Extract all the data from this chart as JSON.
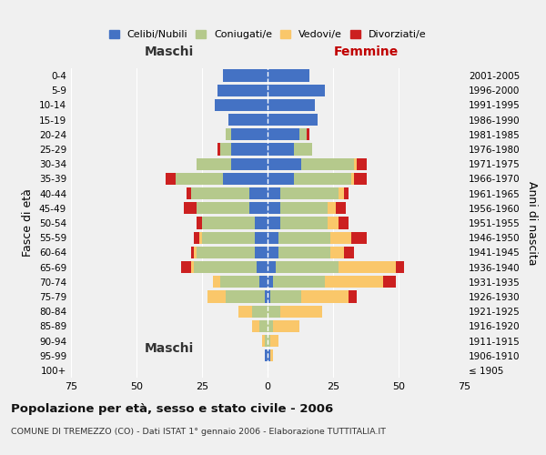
{
  "age_groups": [
    "100+",
    "95-99",
    "90-94",
    "85-89",
    "80-84",
    "75-79",
    "70-74",
    "65-69",
    "60-64",
    "55-59",
    "50-54",
    "45-49",
    "40-44",
    "35-39",
    "30-34",
    "25-29",
    "20-24",
    "15-19",
    "10-14",
    "5-9",
    "0-4"
  ],
  "birth_years": [
    "≤ 1905",
    "1906-1910",
    "1911-1915",
    "1916-1920",
    "1921-1925",
    "1926-1930",
    "1931-1935",
    "1936-1940",
    "1941-1945",
    "1946-1950",
    "1951-1955",
    "1956-1960",
    "1961-1965",
    "1966-1970",
    "1971-1975",
    "1976-1980",
    "1981-1985",
    "1986-1990",
    "1991-1995",
    "1996-2000",
    "2001-2005"
  ],
  "male": {
    "celibe": [
      0,
      1,
      0,
      0,
      0,
      1,
      3,
      4,
      5,
      5,
      5,
      7,
      7,
      17,
      14,
      14,
      14,
      15,
      20,
      19,
      17
    ],
    "coniugato": [
      0,
      0,
      1,
      3,
      6,
      15,
      15,
      24,
      22,
      20,
      20,
      20,
      22,
      18,
      13,
      4,
      2,
      0,
      0,
      0,
      0
    ],
    "vedovo": [
      0,
      0,
      1,
      3,
      5,
      7,
      3,
      1,
      1,
      1,
      0,
      0,
      0,
      0,
      0,
      0,
      0,
      0,
      0,
      0,
      0
    ],
    "divorziato": [
      0,
      0,
      0,
      0,
      0,
      0,
      0,
      4,
      1,
      2,
      2,
      5,
      2,
      4,
      0,
      1,
      0,
      0,
      0,
      0,
      0
    ]
  },
  "female": {
    "nubile": [
      0,
      1,
      0,
      0,
      0,
      1,
      2,
      3,
      4,
      4,
      5,
      5,
      5,
      10,
      13,
      10,
      12,
      19,
      18,
      22,
      16
    ],
    "coniugata": [
      0,
      0,
      1,
      2,
      5,
      12,
      20,
      24,
      20,
      20,
      18,
      18,
      22,
      22,
      20,
      7,
      3,
      0,
      0,
      0,
      0
    ],
    "vedova": [
      0,
      1,
      3,
      10,
      16,
      18,
      22,
      22,
      5,
      8,
      4,
      3,
      2,
      1,
      1,
      0,
      0,
      0,
      0,
      0,
      0
    ],
    "divorziata": [
      0,
      0,
      0,
      0,
      0,
      3,
      5,
      3,
      4,
      6,
      4,
      4,
      2,
      5,
      4,
      0,
      1,
      0,
      0,
      0,
      0
    ]
  },
  "colors": {
    "celibe": "#4472C4",
    "coniugato": "#b5c98c",
    "vedovo": "#fac76a",
    "divorziato": "#cc2020"
  },
  "xlim": 75,
  "title": "Popolazione per età, sesso e stato civile - 2006",
  "subtitle": "COMUNE DI TREMEZZO (CO) - Dati ISTAT 1° gennaio 2006 - Elaborazione TUTTITALIA.IT",
  "legend_labels": [
    "Celibi/Nubili",
    "Coniugati/e",
    "Vedovi/e",
    "Divorziati/e"
  ],
  "xlabel_left": "Maschi",
  "xlabel_right": "Femmine",
  "ylabel_left": "Fasce di età",
  "ylabel_right": "Anni di nascita",
  "background_color": "#f0f0f0"
}
